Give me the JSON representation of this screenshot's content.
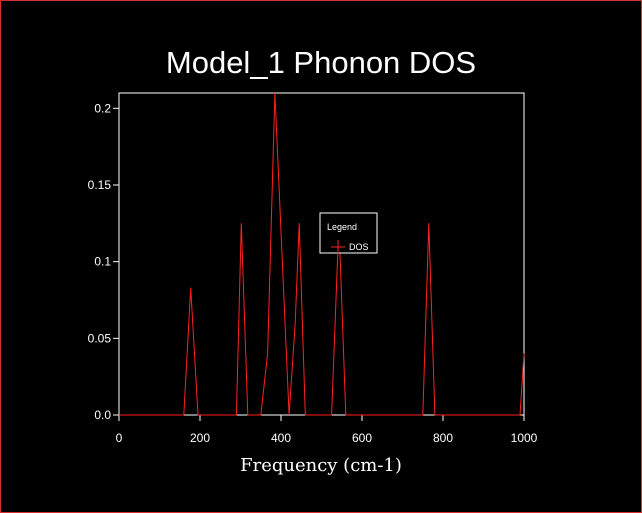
{
  "window": {
    "border_color": "#d83030",
    "background": "#000000"
  },
  "chart_data": {
    "type": "line",
    "title": "Model_1 Phonon DOS",
    "xlabel": "Frequency (cm-1)",
    "ylabel": "",
    "xlim": [
      0,
      1000
    ],
    "ylim": [
      0,
      0.21
    ],
    "x_ticks": [
      0,
      200,
      400,
      600,
      800,
      1000
    ],
    "x_tick_labels": [
      "0",
      "200",
      "400",
      "600",
      "800",
      "1000"
    ],
    "y_ticks": [
      0,
      0.05,
      0.1,
      0.15,
      0.2
    ],
    "y_tick_labels": [
      "0.0",
      "0.05",
      "0.1",
      "0.15",
      "0.2"
    ],
    "grid": false,
    "legend": {
      "title": "Legend",
      "placement": "center-right",
      "entries": [
        "DOS"
      ]
    },
    "series": [
      {
        "name": "DOS",
        "color": "#ff2020",
        "x": [
          0,
          160,
          177,
          195,
          290,
          302,
          318,
          350,
          367,
          385,
          405,
          420,
          435,
          445,
          460,
          525,
          543,
          560,
          750,
          765,
          780,
          990,
          1000
        ],
        "y": [
          0,
          0,
          0.083,
          0,
          0,
          0.125,
          0,
          0,
          0.04,
          0.21,
          0.09,
          0,
          0.06,
          0.125,
          0,
          0,
          0.125,
          0,
          0,
          0.125,
          0,
          0,
          0.04
        ]
      }
    ]
  }
}
